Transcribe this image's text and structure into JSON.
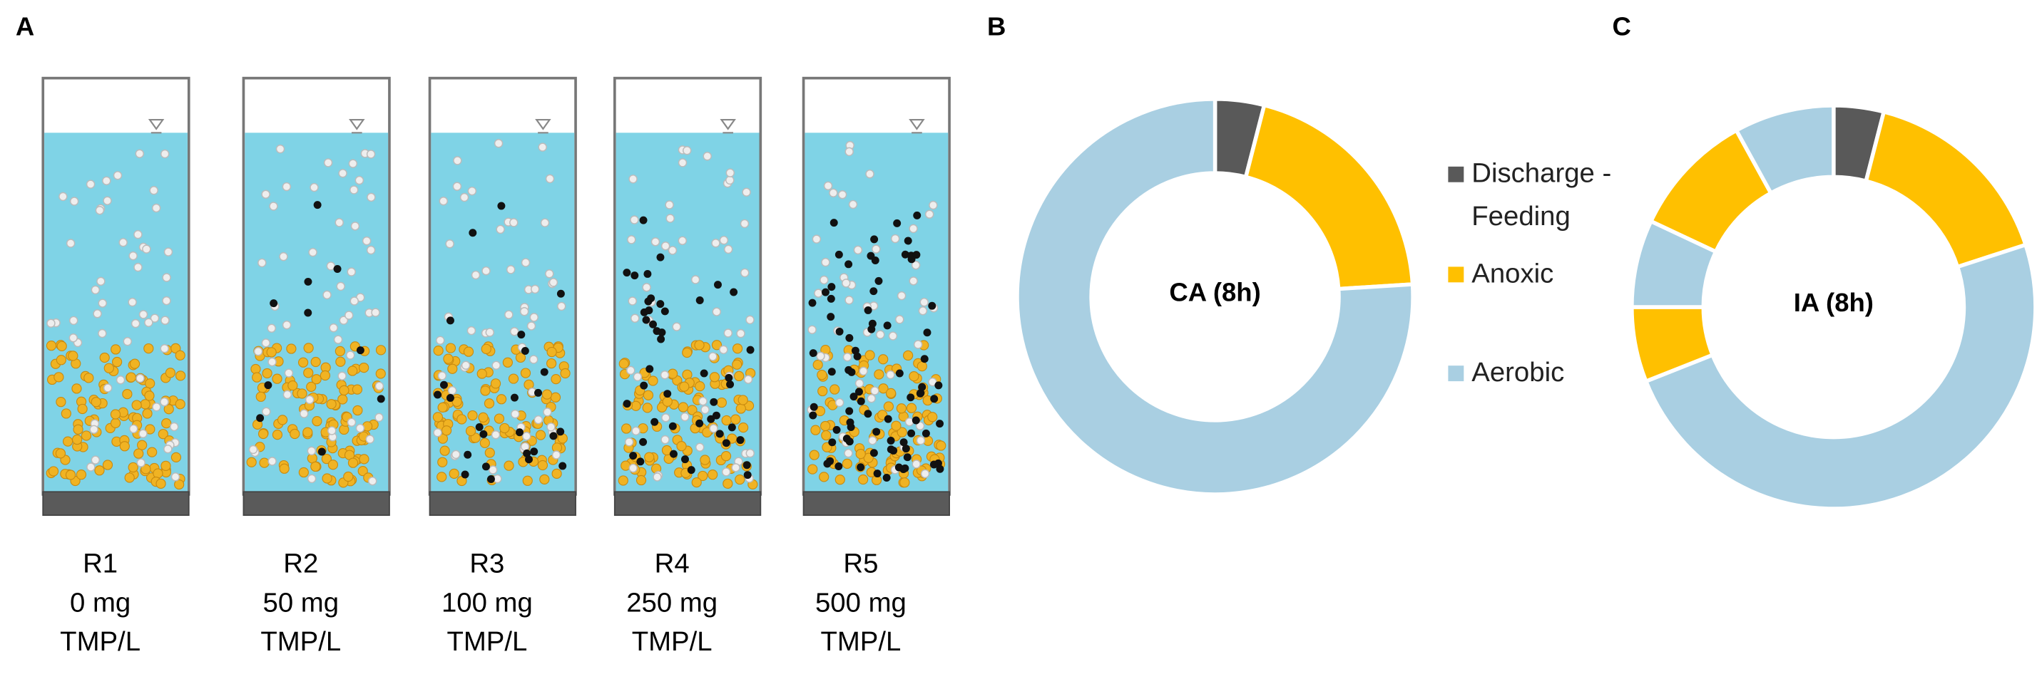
{
  "panel_a": {
    "label": "A",
    "reactors": [
      {
        "name": "R1",
        "dose": "0 mg",
        "unit": "TMP/L"
      },
      {
        "name": "R2",
        "dose": "50 mg",
        "unit": "TMP/L"
      },
      {
        "name": "R3",
        "dose": "100 mg",
        "unit": "TMP/L"
      },
      {
        "name": "R4",
        "dose": "250 mg",
        "unit": "TMP/L"
      },
      {
        "name": "R5",
        "dose": "500 mg",
        "unit": "TMP/L"
      }
    ]
  },
  "legend": {
    "items": [
      {
        "name": "Discharge - Feeding",
        "color": "#595959"
      },
      {
        "name": "Anoxic",
        "color": "#ffc000"
      },
      {
        "name": "Aerobic",
        "color": "#a9cfe2"
      }
    ]
  },
  "chart_data": [
    {
      "type": "donut",
      "panel": "B",
      "title": "CA (8h)",
      "categories": [
        "Discharge - Feeding",
        "Anoxic",
        "Aerobic"
      ],
      "values": [
        4,
        20,
        76
      ]
    },
    {
      "type": "donut",
      "panel": "C",
      "title": "IA (8h)",
      "categories": [
        "Discharge - Feeding",
        "Anoxic",
        "Aerobic",
        "Anoxic",
        "Aerobic",
        "Anoxic",
        "Aerobic"
      ],
      "values": [
        4,
        16,
        49,
        6,
        7,
        10,
        8
      ]
    }
  ]
}
